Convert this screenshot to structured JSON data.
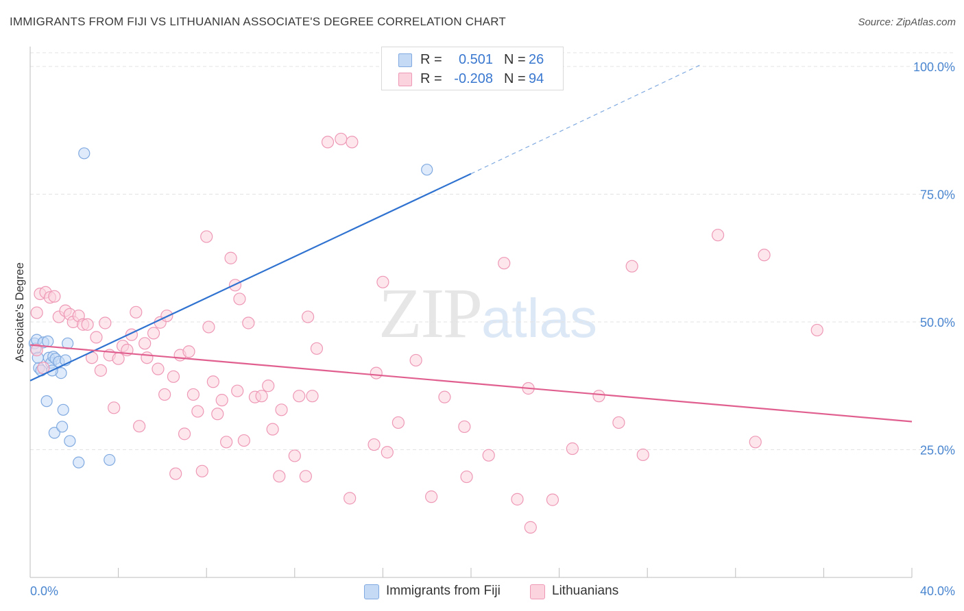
{
  "title": "IMMIGRANTS FROM FIJI VS LITHUANIAN ASSOCIATE'S DEGREE CORRELATION CHART",
  "source": "Source: ZipAtlas.com",
  "watermark": {
    "zip": "ZIP",
    "atlas": "atlas"
  },
  "legend_top": [
    {
      "r_label": "R =",
      "r_value": "0.501",
      "n_label": "N =",
      "n_value": "26",
      "color": "#a8c8f0"
    },
    {
      "r_label": "R =",
      "r_value": "-0.208",
      "n_label": "N =",
      "n_value": "94",
      "color": "#f7b6ca"
    }
  ],
  "legend_bottom": [
    {
      "label": "Immigrants from Fiji",
      "color": "#a8c8f0"
    },
    {
      "label": "Lithuanians",
      "color": "#f7b6ca"
    }
  ],
  "chart_data": {
    "type": "scatter",
    "title": "IMMIGRANTS FROM FIJI VS LITHUANIAN ASSOCIATE'S DEGREE CORRELATION CHART",
    "xlabel": "",
    "ylabel": "Associate's Degree",
    "xlim": [
      0,
      40
    ],
    "ylim": [
      0,
      102
    ],
    "x_tick_labels": [
      {
        "value": 0,
        "label": "0.0%"
      },
      {
        "value": 40,
        "label": "40.0%"
      }
    ],
    "y_tick_labels": [
      {
        "value": 25,
        "label": "25.0%"
      },
      {
        "value": 50,
        "label": "50.0%"
      },
      {
        "value": 75,
        "label": "75.0%"
      },
      {
        "value": 100,
        "label": "100.0%"
      }
    ],
    "grid": true,
    "legend_position": "top-center",
    "series": [
      {
        "name": "Immigrants from Fiji",
        "color": "#7fa9e0",
        "fill": "#c5daf5",
        "trend_color": "#2f72d0",
        "points": [
          [
            0.2,
            45.8
          ],
          [
            0.25,
            44.8
          ],
          [
            0.3,
            46.5
          ],
          [
            0.4,
            41.0
          ],
          [
            0.5,
            40.5
          ],
          [
            0.6,
            46.0
          ],
          [
            0.75,
            34.5
          ],
          [
            0.8,
            46.2
          ],
          [
            0.85,
            43.0
          ],
          [
            0.95,
            42.0
          ],
          [
            1.05,
            43.2
          ],
          [
            1.1,
            28.3
          ],
          [
            1.15,
            42.8
          ],
          [
            1.3,
            42.2
          ],
          [
            1.4,
            40.0
          ],
          [
            1.45,
            29.5
          ],
          [
            1.5,
            32.8
          ],
          [
            1.6,
            42.5
          ],
          [
            1.7,
            45.8
          ],
          [
            1.8,
            26.7
          ],
          [
            2.2,
            22.5
          ],
          [
            2.45,
            83.0
          ],
          [
            3.6,
            23.0
          ],
          [
            18.0,
            79.8
          ],
          [
            0.35,
            43.0
          ],
          [
            1.0,
            40.5
          ]
        ],
        "trend": {
          "x0": 0,
          "y0": 38.5,
          "x1": 20,
          "y1": 79.0,
          "dash_x1": 30.5,
          "dash_y1": 100.5
        }
      },
      {
        "name": "Lithuanians",
        "color": "#ee98b6",
        "fill": "#fbd3df",
        "trend_color": "#e05f8e",
        "points": [
          [
            0.3,
            51.8
          ],
          [
            0.3,
            44.5
          ],
          [
            0.45,
            55.5
          ],
          [
            0.7,
            55.8
          ],
          [
            0.9,
            54.8
          ],
          [
            1.1,
            55.0
          ],
          [
            1.3,
            51.0
          ],
          [
            1.6,
            52.2
          ],
          [
            1.8,
            51.5
          ],
          [
            1.95,
            50.0
          ],
          [
            2.2,
            51.2
          ],
          [
            2.4,
            49.5
          ],
          [
            2.6,
            49.5
          ],
          [
            2.8,
            43.0
          ],
          [
            3.0,
            47.0
          ],
          [
            3.2,
            40.5
          ],
          [
            3.4,
            49.8
          ],
          [
            3.6,
            43.5
          ],
          [
            3.8,
            33.2
          ],
          [
            4.0,
            42.8
          ],
          [
            4.2,
            45.3
          ],
          [
            4.4,
            44.5
          ],
          [
            4.6,
            47.5
          ],
          [
            4.8,
            51.9
          ],
          [
            4.95,
            29.6
          ],
          [
            5.2,
            45.8
          ],
          [
            5.3,
            43.0
          ],
          [
            5.6,
            47.8
          ],
          [
            5.8,
            40.8
          ],
          [
            5.9,
            49.9
          ],
          [
            6.1,
            35.8
          ],
          [
            6.2,
            51.2
          ],
          [
            6.5,
            39.3
          ],
          [
            6.6,
            20.3
          ],
          [
            6.8,
            43.5
          ],
          [
            7.0,
            28.1
          ],
          [
            7.2,
            44.2
          ],
          [
            7.4,
            35.8
          ],
          [
            7.6,
            32.5
          ],
          [
            7.8,
            20.8
          ],
          [
            8.0,
            66.7
          ],
          [
            8.1,
            49.0
          ],
          [
            8.3,
            38.3
          ],
          [
            8.5,
            32.0
          ],
          [
            8.7,
            34.7
          ],
          [
            8.9,
            26.5
          ],
          [
            9.1,
            62.5
          ],
          [
            9.3,
            57.2
          ],
          [
            9.4,
            36.5
          ],
          [
            9.5,
            54.5
          ],
          [
            9.7,
            26.8
          ],
          [
            9.9,
            49.8
          ],
          [
            10.2,
            35.3
          ],
          [
            10.5,
            35.5
          ],
          [
            10.8,
            37.5
          ],
          [
            11.0,
            29.0
          ],
          [
            11.3,
            19.8
          ],
          [
            11.4,
            32.8
          ],
          [
            12.0,
            23.8
          ],
          [
            12.2,
            35.5
          ],
          [
            12.5,
            19.8
          ],
          [
            12.6,
            51.0
          ],
          [
            12.8,
            35.5
          ],
          [
            13.0,
            44.8
          ],
          [
            13.5,
            85.2
          ],
          [
            14.1,
            85.8
          ],
          [
            14.5,
            15.5
          ],
          [
            14.6,
            85.2
          ],
          [
            15.6,
            26.0
          ],
          [
            15.7,
            40.0
          ],
          [
            16.0,
            57.8
          ],
          [
            16.2,
            24.5
          ],
          [
            16.7,
            30.3
          ],
          [
            17.5,
            42.5
          ],
          [
            18.2,
            15.8
          ],
          [
            18.8,
            35.3
          ],
          [
            19.7,
            29.5
          ],
          [
            19.8,
            19.7
          ],
          [
            20.8,
            23.9
          ],
          [
            21.5,
            61.5
          ],
          [
            22.1,
            15.3
          ],
          [
            22.6,
            37.0
          ],
          [
            22.7,
            9.8
          ],
          [
            23.7,
            15.2
          ],
          [
            24.6,
            25.2
          ],
          [
            25.8,
            35.5
          ],
          [
            26.7,
            30.3
          ],
          [
            27.3,
            60.9
          ],
          [
            27.8,
            24.0
          ],
          [
            31.2,
            67.0
          ],
          [
            32.9,
            26.5
          ],
          [
            33.3,
            63.1
          ],
          [
            35.7,
            48.4
          ],
          [
            0.6,
            41.0
          ]
        ],
        "trend": {
          "x0": 0,
          "y0": 45.5,
          "x1": 40,
          "y1": 30.5
        }
      }
    ]
  }
}
